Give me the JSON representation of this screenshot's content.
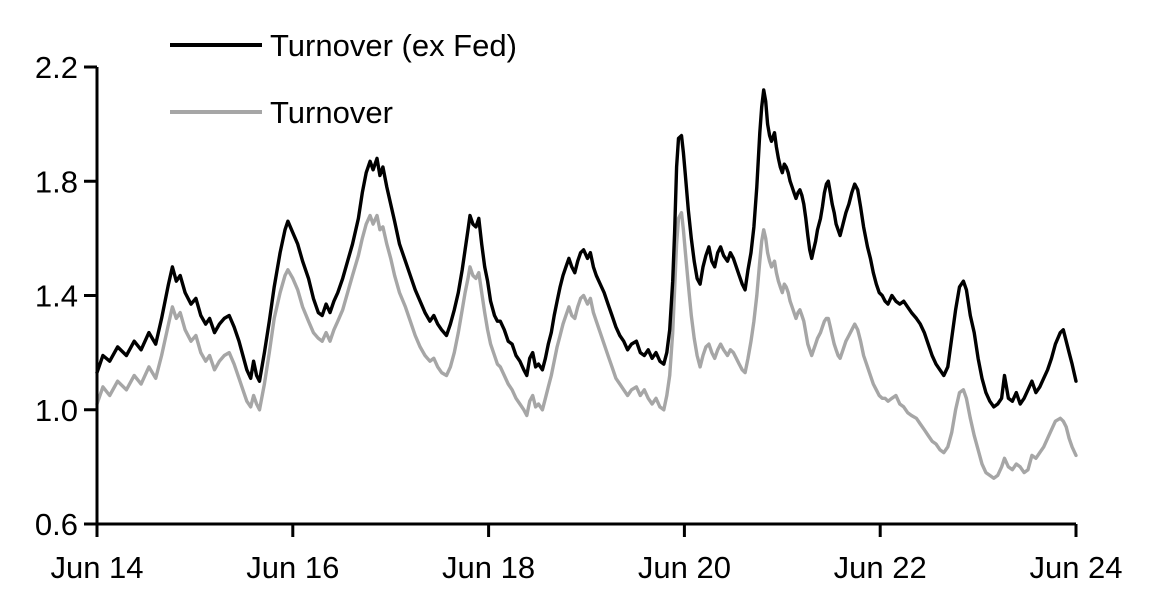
{
  "figure": {
    "background": "#ffffff"
  },
  "legend": {
    "items": [
      {
        "label": "Turnover (ex Fed)",
        "color": "#000000"
      },
      {
        "label": "Turnover",
        "color": "#a6a6a6"
      }
    ]
  },
  "chart_data": {
    "type": "line",
    "title": "",
    "xlabel": "",
    "ylabel": "",
    "x_unit": "years since Jun 2014",
    "xlim": [
      0,
      10
    ],
    "ylim": [
      0.6,
      2.2
    ],
    "y_ticks": [
      "2.2",
      "1.8",
      "1.4",
      "1.0",
      "0.6"
    ],
    "y_tick_values": [
      2.2,
      1.8,
      1.4,
      1.0,
      0.6
    ],
    "x_tick_labels": [
      "Jun 14",
      "Jun 16",
      "Jun 18",
      "Jun 20",
      "Jun 22",
      "Jun 24"
    ],
    "x_tick_positions": [
      0,
      2,
      4,
      6,
      8,
      10
    ],
    "grid": false,
    "legend_position": "top-left-inside",
    "series": [
      {
        "name": "Turnover (ex Fed)",
        "color": "#000000",
        "width": 3.4
      },
      {
        "name": "Turnover",
        "color": "#a6a6a6",
        "width": 3.4
      }
    ],
    "points": [
      [
        0.0,
        1.13,
        1.02
      ],
      [
        0.06,
        1.19,
        1.08
      ],
      [
        0.13,
        1.17,
        1.05
      ],
      [
        0.21,
        1.22,
        1.1
      ],
      [
        0.3,
        1.19,
        1.07
      ],
      [
        0.38,
        1.24,
        1.12
      ],
      [
        0.45,
        1.21,
        1.09
      ],
      [
        0.53,
        1.27,
        1.15
      ],
      [
        0.6,
        1.23,
        1.11
      ],
      [
        0.66,
        1.32,
        1.19
      ],
      [
        0.73,
        1.44,
        1.3
      ],
      [
        0.77,
        1.5,
        1.36
      ],
      [
        0.81,
        1.45,
        1.32
      ],
      [
        0.85,
        1.47,
        1.34
      ],
      [
        0.9,
        1.41,
        1.28
      ],
      [
        0.96,
        1.37,
        1.24
      ],
      [
        1.01,
        1.39,
        1.26
      ],
      [
        1.06,
        1.33,
        1.2
      ],
      [
        1.11,
        1.3,
        1.17
      ],
      [
        1.15,
        1.32,
        1.19
      ],
      [
        1.2,
        1.27,
        1.14
      ],
      [
        1.25,
        1.3,
        1.17
      ],
      [
        1.3,
        1.32,
        1.19
      ],
      [
        1.35,
        1.33,
        1.2
      ],
      [
        1.4,
        1.29,
        1.16
      ],
      [
        1.45,
        1.24,
        1.11
      ],
      [
        1.49,
        1.19,
        1.07
      ],
      [
        1.53,
        1.14,
        1.03
      ],
      [
        1.57,
        1.11,
        1.01
      ],
      [
        1.6,
        1.17,
        1.05
      ],
      [
        1.63,
        1.12,
        1.02
      ],
      [
        1.66,
        1.1,
        1.0
      ],
      [
        1.71,
        1.2,
        1.09
      ],
      [
        1.76,
        1.31,
        1.2
      ],
      [
        1.81,
        1.43,
        1.32
      ],
      [
        1.87,
        1.55,
        1.41
      ],
      [
        1.92,
        1.63,
        1.47
      ],
      [
        1.95,
        1.66,
        1.49
      ],
      [
        2.0,
        1.62,
        1.46
      ],
      [
        2.05,
        1.58,
        1.42
      ],
      [
        2.1,
        1.52,
        1.36
      ],
      [
        2.16,
        1.46,
        1.31
      ],
      [
        2.21,
        1.39,
        1.27
      ],
      [
        2.26,
        1.34,
        1.25
      ],
      [
        2.3,
        1.33,
        1.24
      ],
      [
        2.34,
        1.37,
        1.27
      ],
      [
        2.38,
        1.34,
        1.24
      ],
      [
        2.42,
        1.38,
        1.28
      ],
      [
        2.46,
        1.41,
        1.31
      ],
      [
        2.51,
        1.46,
        1.35
      ],
      [
        2.56,
        1.52,
        1.41
      ],
      [
        2.61,
        1.58,
        1.47
      ],
      [
        2.67,
        1.67,
        1.54
      ],
      [
        2.71,
        1.76,
        1.6
      ],
      [
        2.75,
        1.83,
        1.65
      ],
      [
        2.79,
        1.87,
        1.68
      ],
      [
        2.82,
        1.84,
        1.65
      ],
      [
        2.86,
        1.88,
        1.68
      ],
      [
        2.89,
        1.82,
        1.63
      ],
      [
        2.92,
        1.85,
        1.64
      ],
      [
        2.96,
        1.78,
        1.58
      ],
      [
        3.0,
        1.72,
        1.53
      ],
      [
        3.04,
        1.66,
        1.47
      ],
      [
        3.09,
        1.58,
        1.41
      ],
      [
        3.15,
        1.52,
        1.36
      ],
      [
        3.2,
        1.47,
        1.31
      ],
      [
        3.25,
        1.42,
        1.26
      ],
      [
        3.3,
        1.38,
        1.22
      ],
      [
        3.35,
        1.34,
        1.19
      ],
      [
        3.4,
        1.31,
        1.17
      ],
      [
        3.44,
        1.33,
        1.18
      ],
      [
        3.48,
        1.3,
        1.15
      ],
      [
        3.52,
        1.28,
        1.13
      ],
      [
        3.57,
        1.26,
        1.12
      ],
      [
        3.61,
        1.3,
        1.15
      ],
      [
        3.65,
        1.35,
        1.2
      ],
      [
        3.69,
        1.41,
        1.27
      ],
      [
        3.73,
        1.49,
        1.35
      ],
      [
        3.76,
        1.56,
        1.41
      ],
      [
        3.79,
        1.63,
        1.46
      ],
      [
        3.81,
        1.68,
        1.5
      ],
      [
        3.84,
        1.65,
        1.47
      ],
      [
        3.87,
        1.64,
        1.46
      ],
      [
        3.9,
        1.67,
        1.48
      ],
      [
        3.93,
        1.58,
        1.41
      ],
      [
        3.96,
        1.5,
        1.34
      ],
      [
        3.99,
        1.45,
        1.28
      ],
      [
        4.02,
        1.38,
        1.23
      ],
      [
        4.06,
        1.33,
        1.19
      ],
      [
        4.09,
        1.31,
        1.16
      ],
      [
        4.12,
        1.31,
        1.15
      ],
      [
        4.16,
        1.28,
        1.12
      ],
      [
        4.2,
        1.24,
        1.09
      ],
      [
        4.24,
        1.23,
        1.07
      ],
      [
        4.28,
        1.19,
        1.04
      ],
      [
        4.32,
        1.17,
        1.02
      ],
      [
        4.36,
        1.14,
        1.0
      ],
      [
        4.39,
        1.12,
        0.98
      ],
      [
        4.42,
        1.18,
        1.03
      ],
      [
        4.45,
        1.2,
        1.05
      ],
      [
        4.48,
        1.15,
        1.01
      ],
      [
        4.51,
        1.16,
        1.02
      ],
      [
        4.55,
        1.14,
        1.0
      ],
      [
        4.58,
        1.18,
        1.04
      ],
      [
        4.61,
        1.23,
        1.08
      ],
      [
        4.64,
        1.27,
        1.12
      ],
      [
        4.67,
        1.33,
        1.17
      ],
      [
        4.7,
        1.38,
        1.22
      ],
      [
        4.73,
        1.43,
        1.26
      ],
      [
        4.76,
        1.47,
        1.3
      ],
      [
        4.79,
        1.5,
        1.33
      ],
      [
        4.82,
        1.53,
        1.36
      ],
      [
        4.85,
        1.5,
        1.33
      ],
      [
        4.88,
        1.48,
        1.32
      ],
      [
        4.91,
        1.52,
        1.36
      ],
      [
        4.94,
        1.55,
        1.39
      ],
      [
        4.97,
        1.56,
        1.4
      ],
      [
        5.01,
        1.53,
        1.37
      ],
      [
        5.04,
        1.55,
        1.39
      ],
      [
        5.07,
        1.5,
        1.34
      ],
      [
        5.1,
        1.47,
        1.31
      ],
      [
        5.14,
        1.44,
        1.27
      ],
      [
        5.18,
        1.41,
        1.23
      ],
      [
        5.22,
        1.37,
        1.19
      ],
      [
        5.26,
        1.33,
        1.15
      ],
      [
        5.3,
        1.29,
        1.11
      ],
      [
        5.34,
        1.26,
        1.09
      ],
      [
        5.38,
        1.24,
        1.07
      ],
      [
        5.42,
        1.21,
        1.05
      ],
      [
        5.46,
        1.23,
        1.07
      ],
      [
        5.51,
        1.24,
        1.08
      ],
      [
        5.55,
        1.2,
        1.05
      ],
      [
        5.59,
        1.19,
        1.07
      ],
      [
        5.63,
        1.21,
        1.04
      ],
      [
        5.67,
        1.18,
        1.02
      ],
      [
        5.71,
        1.2,
        1.04
      ],
      [
        5.75,
        1.17,
        1.01
      ],
      [
        5.79,
        1.16,
        1.0
      ],
      [
        5.82,
        1.2,
        1.05
      ],
      [
        5.85,
        1.28,
        1.12
      ],
      [
        5.88,
        1.45,
        1.27
      ],
      [
        5.9,
        1.62,
        1.42
      ],
      [
        5.92,
        1.85,
        1.58
      ],
      [
        5.94,
        1.95,
        1.67
      ],
      [
        5.97,
        1.96,
        1.69
      ],
      [
        5.99,
        1.9,
        1.63
      ],
      [
        6.01,
        1.82,
        1.55
      ],
      [
        6.04,
        1.7,
        1.44
      ],
      [
        6.07,
        1.6,
        1.33
      ],
      [
        6.1,
        1.52,
        1.25
      ],
      [
        6.13,
        1.46,
        1.19
      ],
      [
        6.16,
        1.44,
        1.15
      ],
      [
        6.19,
        1.5,
        1.19
      ],
      [
        6.22,
        1.54,
        1.22
      ],
      [
        6.25,
        1.57,
        1.23
      ],
      [
        6.28,
        1.52,
        1.2
      ],
      [
        6.31,
        1.5,
        1.18
      ],
      [
        6.34,
        1.55,
        1.21
      ],
      [
        6.37,
        1.57,
        1.23
      ],
      [
        6.4,
        1.54,
        1.21
      ],
      [
        6.44,
        1.52,
        1.19
      ],
      [
        6.47,
        1.55,
        1.21
      ],
      [
        6.5,
        1.53,
        1.2
      ],
      [
        6.53,
        1.5,
        1.18
      ],
      [
        6.56,
        1.47,
        1.16
      ],
      [
        6.59,
        1.44,
        1.14
      ],
      [
        6.62,
        1.42,
        1.13
      ],
      [
        6.65,
        1.49,
        1.18
      ],
      [
        6.68,
        1.55,
        1.24
      ],
      [
        6.71,
        1.64,
        1.31
      ],
      [
        6.74,
        1.78,
        1.4
      ],
      [
        6.77,
        1.97,
        1.52
      ],
      [
        6.79,
        2.06,
        1.59
      ],
      [
        6.81,
        2.12,
        1.63
      ],
      [
        6.83,
        2.08,
        1.6
      ],
      [
        6.85,
        2.0,
        1.55
      ],
      [
        6.87,
        1.96,
        1.52
      ],
      [
        6.89,
        1.94,
        1.5
      ],
      [
        6.92,
        1.97,
        1.52
      ],
      [
        6.94,
        1.92,
        1.48
      ],
      [
        6.96,
        1.88,
        1.45
      ],
      [
        6.98,
        1.85,
        1.43
      ],
      [
        7.0,
        1.83,
        1.41
      ],
      [
        7.02,
        1.86,
        1.44
      ],
      [
        7.04,
        1.85,
        1.43
      ],
      [
        7.06,
        1.83,
        1.41
      ],
      [
        7.08,
        1.8,
        1.38
      ],
      [
        7.1,
        1.78,
        1.36
      ],
      [
        7.12,
        1.76,
        1.34
      ],
      [
        7.14,
        1.74,
        1.32
      ],
      [
        7.16,
        1.76,
        1.34
      ],
      [
        7.18,
        1.77,
        1.35
      ],
      [
        7.2,
        1.75,
        1.33
      ],
      [
        7.22,
        1.72,
        1.31
      ],
      [
        7.24,
        1.67,
        1.27
      ],
      [
        7.26,
        1.61,
        1.23
      ],
      [
        7.28,
        1.56,
        1.21
      ],
      [
        7.3,
        1.53,
        1.19
      ],
      [
        7.32,
        1.56,
        1.21
      ],
      [
        7.34,
        1.59,
        1.23
      ],
      [
        7.36,
        1.63,
        1.25
      ],
      [
        7.39,
        1.67,
        1.27
      ],
      [
        7.41,
        1.71,
        1.29
      ],
      [
        7.43,
        1.76,
        1.31
      ],
      [
        7.45,
        1.79,
        1.32
      ],
      [
        7.47,
        1.8,
        1.32
      ],
      [
        7.49,
        1.76,
        1.29
      ],
      [
        7.51,
        1.72,
        1.26
      ],
      [
        7.53,
        1.69,
        1.23
      ],
      [
        7.55,
        1.65,
        1.21
      ],
      [
        7.57,
        1.63,
        1.19
      ],
      [
        7.59,
        1.61,
        1.18
      ],
      [
        7.62,
        1.65,
        1.21
      ],
      [
        7.65,
        1.69,
        1.24
      ],
      [
        7.68,
        1.72,
        1.26
      ],
      [
        7.71,
        1.76,
        1.28
      ],
      [
        7.74,
        1.79,
        1.3
      ],
      [
        7.77,
        1.77,
        1.28
      ],
      [
        7.8,
        1.71,
        1.24
      ],
      [
        7.83,
        1.64,
        1.19
      ],
      [
        7.87,
        1.57,
        1.15
      ],
      [
        7.9,
        1.53,
        1.12
      ],
      [
        7.93,
        1.48,
        1.09
      ],
      [
        7.96,
        1.44,
        1.07
      ],
      [
        7.99,
        1.41,
        1.05
      ],
      [
        8.02,
        1.4,
        1.04
      ],
      [
        8.05,
        1.38,
        1.04
      ],
      [
        8.08,
        1.37,
        1.03
      ],
      [
        8.12,
        1.4,
        1.04
      ],
      [
        8.16,
        1.38,
        1.05
      ],
      [
        8.2,
        1.37,
        1.02
      ],
      [
        8.24,
        1.38,
        1.01
      ],
      [
        8.28,
        1.36,
        0.99
      ],
      [
        8.32,
        1.34,
        0.98
      ],
      [
        8.37,
        1.32,
        0.97
      ],
      [
        8.41,
        1.3,
        0.95
      ],
      [
        8.45,
        1.27,
        0.93
      ],
      [
        8.49,
        1.23,
        0.91
      ],
      [
        8.53,
        1.19,
        0.89
      ],
      [
        8.57,
        1.16,
        0.88
      ],
      [
        8.61,
        1.14,
        0.86
      ],
      [
        8.65,
        1.12,
        0.85
      ],
      [
        8.69,
        1.15,
        0.87
      ],
      [
        8.73,
        1.25,
        0.92
      ],
      [
        8.77,
        1.35,
        1.0
      ],
      [
        8.81,
        1.43,
        1.06
      ],
      [
        8.85,
        1.45,
        1.07
      ],
      [
        8.88,
        1.42,
        1.04
      ],
      [
        8.92,
        1.33,
        0.97
      ],
      [
        8.96,
        1.27,
        0.91
      ],
      [
        9.0,
        1.18,
        0.86
      ],
      [
        9.04,
        1.11,
        0.81
      ],
      [
        9.08,
        1.06,
        0.78
      ],
      [
        9.12,
        1.03,
        0.77
      ],
      [
        9.16,
        1.01,
        0.76
      ],
      [
        9.2,
        1.02,
        0.77
      ],
      [
        9.24,
        1.04,
        0.8
      ],
      [
        9.27,
        1.12,
        0.83
      ],
      [
        9.31,
        1.04,
        0.8
      ],
      [
        9.35,
        1.03,
        0.79
      ],
      [
        9.39,
        1.06,
        0.81
      ],
      [
        9.43,
        1.02,
        0.8
      ],
      [
        9.47,
        1.04,
        0.78
      ],
      [
        9.51,
        1.07,
        0.79
      ],
      [
        9.55,
        1.1,
        0.84
      ],
      [
        9.59,
        1.06,
        0.83
      ],
      [
        9.63,
        1.08,
        0.85
      ],
      [
        9.67,
        1.11,
        0.87
      ],
      [
        9.71,
        1.14,
        0.9
      ],
      [
        9.75,
        1.18,
        0.93
      ],
      [
        9.79,
        1.23,
        0.96
      ],
      [
        9.84,
        1.27,
        0.97
      ],
      [
        9.87,
        1.28,
        0.96
      ],
      [
        9.9,
        1.24,
        0.94
      ],
      [
        9.93,
        1.2,
        0.9
      ],
      [
        9.96,
        1.16,
        0.87
      ],
      [
        10.0,
        1.1,
        0.84
      ]
    ]
  }
}
